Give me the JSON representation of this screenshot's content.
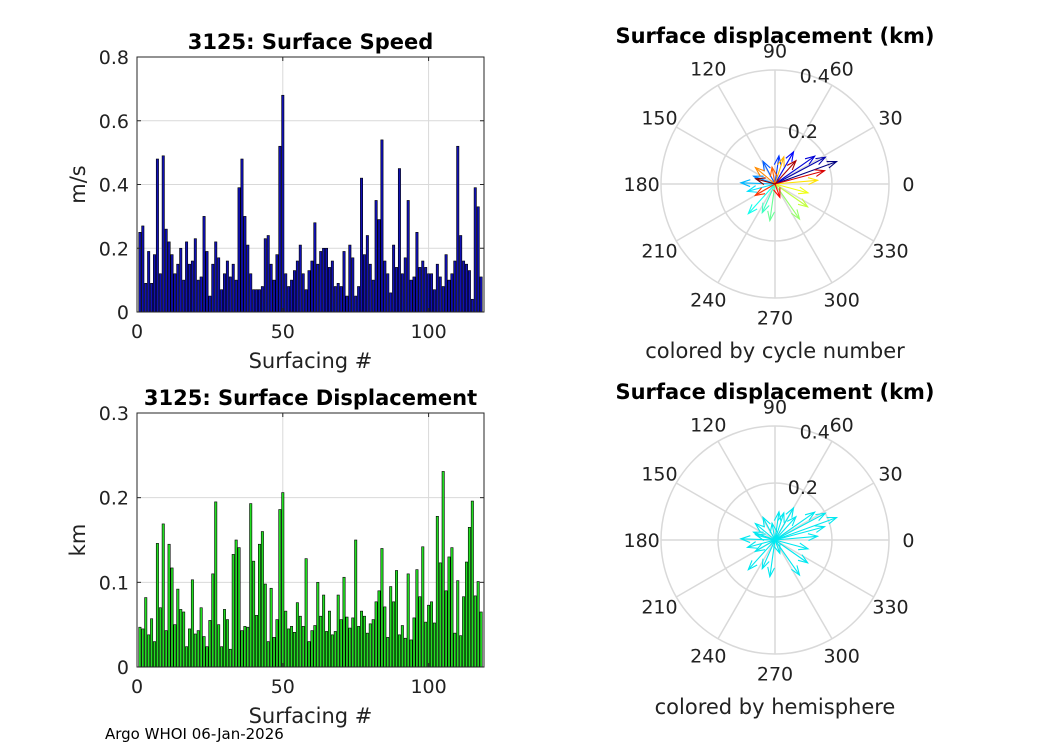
{
  "footer": "Argo WHOI 06-Jan-2026",
  "colors": {
    "speed_bar": "#1010b4",
    "displacement_bar": "#22dd22",
    "hemisphere_arrow": "#00e8f0",
    "grid": "#d9d9d9",
    "bar_edge": "#000000"
  },
  "chart_data": [
    {
      "type": "bar",
      "title": "3125: Surface Speed",
      "xlabel": "Surfacing #",
      "ylabel": "m/s",
      "xlim": [
        0,
        119
      ],
      "ylim": [
        0,
        0.8
      ],
      "xticks": [
        0,
        50,
        100
      ],
      "yticks": [
        0,
        0.2,
        0.4,
        0.6,
        0.8
      ],
      "ytick_labels": [
        "0",
        "0.2",
        "0.4",
        "0.6",
        "0.8"
      ],
      "grid": true,
      "x": [
        1,
        2,
        3,
        4,
        5,
        6,
        7,
        8,
        9,
        10,
        11,
        12,
        13,
        14,
        15,
        16,
        17,
        18,
        19,
        20,
        21,
        22,
        23,
        24,
        25,
        26,
        27,
        28,
        29,
        30,
        31,
        32,
        33,
        34,
        35,
        36,
        37,
        38,
        39,
        40,
        41,
        42,
        43,
        44,
        45,
        46,
        47,
        48,
        49,
        50,
        51,
        52,
        53,
        54,
        55,
        56,
        57,
        58,
        59,
        60,
        61,
        62,
        63,
        64,
        65,
        66,
        67,
        68,
        69,
        70,
        71,
        72,
        73,
        74,
        75,
        76,
        77,
        78,
        79,
        80,
        81,
        82,
        83,
        84,
        85,
        86,
        87,
        88,
        89,
        90,
        91,
        92,
        93,
        94,
        95,
        96,
        97,
        98,
        99,
        100,
        101,
        102,
        103,
        104,
        105,
        106,
        107,
        108,
        109,
        110,
        111,
        112,
        113,
        114,
        115,
        116,
        117,
        118
      ],
      "values": [
        0.25,
        0.27,
        0.09,
        0.19,
        0.09,
        0.18,
        0.48,
        0.12,
        0.49,
        0.26,
        0.22,
        0.18,
        0.12,
        0.15,
        0.2,
        0.1,
        0.22,
        0.15,
        0.16,
        0.23,
        0.1,
        0.11,
        0.3,
        0.19,
        0.05,
        0.15,
        0.22,
        0.17,
        0.07,
        0.12,
        0.16,
        0.11,
        0.15,
        0.1,
        0.39,
        0.48,
        0.3,
        0.21,
        0.12,
        0.07,
        0.07,
        0.07,
        0.08,
        0.23,
        0.24,
        0.15,
        0.1,
        0.18,
        0.52,
        0.68,
        0.12,
        0.08,
        0.1,
        0.13,
        0.16,
        0.21,
        0.12,
        0.07,
        0.13,
        0.16,
        0.28,
        0.15,
        0.19,
        0.2,
        0.2,
        0.14,
        0.16,
        0.08,
        0.09,
        0.08,
        0.19,
        0.05,
        0.21,
        0.17,
        0.05,
        0.08,
        0.42,
        0.18,
        0.24,
        0.15,
        0.1,
        0.35,
        0.29,
        0.54,
        0.16,
        0.12,
        0.06,
        0.21,
        0.14,
        0.45,
        0.12,
        0.17,
        0.35,
        0.1,
        0.11,
        0.25,
        0.14,
        0.16,
        0.14,
        0.12,
        0.12,
        0.07,
        0.15,
        0.11,
        0.08,
        0.18,
        0.1,
        0.12,
        0.16,
        0.52,
        0.24,
        0.16,
        0.15,
        0.13,
        0.04,
        0.39,
        0.33,
        0.11
      ],
      "x_full": [
        1,
        2,
        3,
        4,
        5,
        6,
        7,
        8,
        9,
        10,
        11,
        12,
        13,
        14,
        15,
        16,
        17,
        18,
        19,
        20,
        21,
        22,
        23,
        24,
        25,
        26,
        27,
        28,
        29,
        30,
        31,
        32,
        33,
        34,
        35,
        36,
        37,
        38,
        39,
        40,
        41,
        42,
        43,
        44,
        45,
        46,
        47,
        48,
        49,
        50,
        51,
        52,
        53,
        54,
        55,
        56,
        57,
        58,
        59,
        60,
        61,
        62,
        63,
        64,
        65,
        66,
        67,
        68,
        69,
        70,
        71,
        72,
        73,
        74,
        75,
        76,
        77,
        78,
        79,
        80,
        81,
        82,
        83,
        84,
        85,
        86,
        87,
        88,
        89,
        90,
        91,
        92,
        93,
        94,
        95,
        96,
        97,
        98,
        99,
        100,
        101,
        102,
        103,
        104,
        105,
        106,
        107,
        108,
        109,
        110,
        111,
        112,
        113,
        114,
        115,
        116,
        117,
        118
      ],
      "values_full": [
        0.25,
        0.27,
        0.09,
        0.19,
        0.09,
        0.18,
        0.48,
        0.12,
        0.49,
        0.26,
        0.22,
        0.18,
        0.12,
        0.15,
        0.2,
        0.1,
        0.22,
        0.15,
        0.16,
        0.23,
        0.1,
        0.11,
        0.3,
        0.19,
        0.05,
        0.15,
        0.22,
        0.17,
        0.07,
        0.12,
        0.16,
        0.11,
        0.15,
        0.1,
        0.39,
        0.48,
        0.3,
        0.21,
        0.12,
        0.07,
        0.07,
        0.07,
        0.08,
        0.23,
        0.24,
        0.15,
        0.1,
        0.18,
        0.52,
        0.68,
        0.12,
        0.08,
        0.1,
        0.13,
        0.16,
        0.21,
        0.12,
        0.07,
        0.13,
        0.16,
        0.28,
        0.15,
        0.19,
        0.2,
        0.2,
        0.14,
        0.16,
        0.08,
        0.09,
        0.08,
        0.19,
        0.05,
        0.21,
        0.17,
        0.05,
        0.08,
        0.42,
        0.18,
        0.24,
        0.15,
        0.1,
        0.35,
        0.29,
        0.54,
        0.16,
        0.12,
        0.06,
        0.21,
        0.14,
        0.45,
        0.12,
        0.17,
        0.35,
        0.1,
        0.11,
        0.25,
        0.14,
        0.16,
        0.14,
        0.12,
        0.12,
        0.07,
        0.15,
        0.11,
        0.08,
        0.18,
        0.1,
        0.12,
        0.16,
        0.52,
        0.24,
        0.16,
        0.15,
        0.13,
        0.04,
        0.39,
        0.33,
        0.11
      ]
    },
    {
      "type": "bar",
      "title": "3125: Surface Displacement",
      "xlabel": "Surfacing #",
      "ylabel": "km",
      "xlim": [
        0,
        119
      ],
      "ylim": [
        0,
        0.3
      ],
      "xticks": [
        0,
        50,
        100
      ],
      "yticks": [
        0,
        0.1,
        0.2,
        0.3
      ],
      "ytick_labels": [
        "0",
        "0.1",
        "0.2",
        "0.3"
      ],
      "grid": true,
      "values": [
        0.047,
        0.045,
        0.082,
        0.038,
        0.057,
        0.03,
        0.146,
        0.07,
        0.169,
        0.043,
        0.145,
        0.117,
        0.05,
        0.092,
        0.068,
        0.065,
        0.024,
        0.045,
        0.103,
        0.039,
        0.043,
        0.07,
        0.036,
        0.024,
        0.055,
        0.11,
        0.195,
        0.05,
        0.024,
        0.068,
        0.056,
        0.021,
        0.133,
        0.15,
        0.141,
        0.043,
        0.048,
        0.047,
        0.193,
        0.125,
        0.061,
        0.145,
        0.16,
        0.098,
        0.03,
        0.093,
        0.035,
        0.056,
        0.186,
        0.206,
        0.066,
        0.045,
        0.048,
        0.041,
        0.076,
        0.06,
        0.048,
        0.128,
        0.03,
        0.043,
        0.049,
        0.1,
        0.06,
        0.085,
        0.042,
        0.066,
        0.038,
        0.042,
        0.085,
        0.056,
        0.106,
        0.059,
        0.046,
        0.058,
        0.15,
        0.048,
        0.066,
        0.06,
        0.04,
        0.051,
        0.056,
        0.077,
        0.09,
        0.14,
        0.071,
        0.035,
        0.095,
        0.077,
        0.114,
        0.038,
        0.049,
        0.034,
        0.11,
        0.032,
        0.058,
        0.115,
        0.083,
        0.142,
        0.053,
        0.073,
        0.077,
        0.052,
        0.178,
        0.123,
        0.231,
        0.09,
        0.13,
        0.141,
        0.04,
        0.102,
        0.037,
        0.083,
        0.124,
        0.165,
        0.196,
        0.084,
        0.101,
        0.065
      ],
      "values_full": [
        0.047,
        0.045,
        0.082,
        0.038,
        0.057,
        0.03,
        0.146,
        0.07,
        0.169,
        0.043,
        0.145,
        0.117,
        0.05,
        0.092,
        0.068,
        0.065,
        0.024,
        0.045,
        0.103,
        0.039,
        0.043,
        0.07,
        0.036,
        0.024,
        0.055,
        0.11,
        0.195,
        0.05,
        0.024,
        0.068,
        0.056,
        0.021,
        0.133,
        0.15,
        0.141,
        0.043,
        0.048,
        0.047,
        0.193,
        0.125,
        0.061,
        0.145,
        0.16,
        0.098,
        0.03,
        0.093,
        0.035,
        0.056,
        0.186,
        0.206,
        0.066,
        0.045,
        0.048,
        0.041,
        0.076,
        0.06,
        0.048,
        0.128,
        0.03,
        0.043,
        0.049,
        0.1,
        0.06,
        0.085,
        0.042,
        0.066,
        0.038,
        0.042,
        0.085,
        0.056,
        0.106,
        0.059,
        0.046,
        0.058,
        0.15,
        0.048,
        0.066,
        0.06,
        0.04,
        0.051,
        0.056,
        0.077,
        0.09,
        0.14,
        0.071,
        0.035,
        0.095,
        0.077,
        0.114,
        0.038,
        0.049,
        0.034,
        0.11,
        0.032,
        0.058,
        0.115,
        0.083,
        0.142,
        0.053,
        0.073,
        0.077,
        0.052,
        0.178,
        0.123,
        0.231,
        0.09,
        0.13,
        0.141,
        0.04,
        0.102,
        0.037,
        0.083,
        0.124,
        0.165,
        0.196,
        0.084,
        0.101,
        0.065
      ]
    },
    {
      "type": "polar-compass",
      "title": "Surface displacement (km)",
      "xlabel": "colored by cycle number",
      "rlim": [
        0,
        0.4
      ],
      "r_ticks": [
        0.2,
        0.4
      ],
      "r_tick_labels": [
        "0.2",
        "0.4"
      ],
      "theta_ticks": [
        0,
        30,
        60,
        90,
        120,
        150,
        180,
        210,
        240,
        270,
        300,
        330
      ],
      "theta_tick_labels": [
        "0",
        "30",
        "60",
        "90",
        "120",
        "150",
        "180",
        "210",
        "240",
        "270",
        "300",
        "330"
      ],
      "colormap": "jet",
      "grid": true,
      "vectors": [
        {
          "r": 0.23,
          "theta": 20
        },
        {
          "r": 0.2,
          "theta": 28
        },
        {
          "r": 0.17,
          "theta": 35
        },
        {
          "r": 0.13,
          "theta": 60
        },
        {
          "r": 0.1,
          "theta": 82
        },
        {
          "r": 0.09,
          "theta": 118
        },
        {
          "r": 0.08,
          "theta": 160
        },
        {
          "r": 0.12,
          "theta": 178
        },
        {
          "r": 0.1,
          "theta": 195
        },
        {
          "r": 0.14,
          "theta": 228
        },
        {
          "r": 0.11,
          "theta": 246
        },
        {
          "r": 0.13,
          "theta": 262
        },
        {
          "r": 0.15,
          "theta": 305
        },
        {
          "r": 0.14,
          "theta": 325
        },
        {
          "r": 0.12,
          "theta": 345
        },
        {
          "r": 0.15,
          "theta": 5
        },
        {
          "r": 0.1,
          "theta": 72
        },
        {
          "r": 0.09,
          "theta": 140
        },
        {
          "r": 0.06,
          "theta": 100
        },
        {
          "r": 0.08,
          "theta": 210
        },
        {
          "r": 0.05,
          "theta": 290
        },
        {
          "r": 0.18,
          "theta": 15
        },
        {
          "r": 0.11,
          "theta": 48
        },
        {
          "r": 0.07,
          "theta": 165
        }
      ]
    },
    {
      "type": "polar-compass",
      "title": "Surface displacement (km)",
      "xlabel": "colored by hemisphere",
      "rlim": [
        0,
        0.4
      ],
      "r_ticks": [
        0.2,
        0.4
      ],
      "r_tick_labels": [
        "0.2",
        "0.4"
      ],
      "theta_ticks": [
        0,
        30,
        60,
        90,
        120,
        150,
        180,
        210,
        240,
        270,
        300,
        330
      ],
      "theta_tick_labels": [
        "0",
        "30",
        "60",
        "90",
        "120",
        "150",
        "180",
        "210",
        "240",
        "270",
        "300",
        "330"
      ],
      "grid": true,
      "vectors": [
        {
          "r": 0.23,
          "theta": 20
        },
        {
          "r": 0.2,
          "theta": 28
        },
        {
          "r": 0.17,
          "theta": 35
        },
        {
          "r": 0.13,
          "theta": 60
        },
        {
          "r": 0.1,
          "theta": 82
        },
        {
          "r": 0.09,
          "theta": 118
        },
        {
          "r": 0.08,
          "theta": 160
        },
        {
          "r": 0.12,
          "theta": 178
        },
        {
          "r": 0.1,
          "theta": 195
        },
        {
          "r": 0.14,
          "theta": 228
        },
        {
          "r": 0.11,
          "theta": 246
        },
        {
          "r": 0.13,
          "theta": 262
        },
        {
          "r": 0.15,
          "theta": 305
        },
        {
          "r": 0.14,
          "theta": 325
        },
        {
          "r": 0.12,
          "theta": 345
        },
        {
          "r": 0.15,
          "theta": 5
        },
        {
          "r": 0.1,
          "theta": 72
        },
        {
          "r": 0.09,
          "theta": 140
        },
        {
          "r": 0.06,
          "theta": 100
        },
        {
          "r": 0.08,
          "theta": 210
        },
        {
          "r": 0.05,
          "theta": 290
        },
        {
          "r": 0.18,
          "theta": 15
        },
        {
          "r": 0.11,
          "theta": 48
        },
        {
          "r": 0.07,
          "theta": 165
        }
      ]
    }
  ]
}
